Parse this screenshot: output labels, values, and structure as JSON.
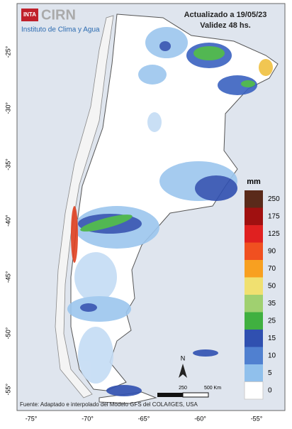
{
  "header": {
    "logo": "INTA",
    "brand": "CIRN",
    "institute": "Instituto de Clima y Agua",
    "updated": "Actualizado a 19/05/23",
    "validity": "Validez 48 hs."
  },
  "legend": {
    "unit": "mm",
    "labels": [
      "250",
      "175",
      "125",
      "90",
      "70",
      "50",
      "35",
      "25",
      "15",
      "10",
      "5",
      "0"
    ]
  },
  "latitude_labels": [
    "-25°",
    "-30°",
    "-35°",
    "-40°",
    "-45°",
    "-50°",
    "-55°"
  ],
  "longitude_labels": [
    "-75°",
    "-70°",
    "-65°",
    "-60°",
    "-55°"
  ],
  "scale": {
    "north": "N",
    "start": "250",
    "end": "500 Km"
  },
  "footer": "Fuente: Adaptado e interpolado del Modelo GFS del COLA/IGES, USA"
}
